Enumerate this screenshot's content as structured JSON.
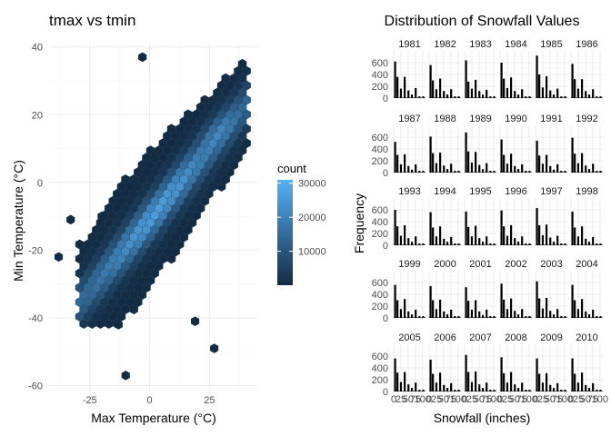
{
  "chart_data": [
    {
      "type": "hexbin",
      "title": "tmax vs tmin",
      "xlabel": "Max Temperature (°C)",
      "ylabel": "Min Temperature (°C)",
      "xlim": [
        -42,
        45
      ],
      "ylim": [
        -62,
        41
      ],
      "xticks": [
        -25,
        0,
        25
      ],
      "yticks": [
        -60,
        -40,
        -20,
        0,
        20,
        40
      ],
      "legend": {
        "title": "count",
        "position": "right",
        "breaks": [
          10000,
          20000,
          30000
        ],
        "labels": [
          "10000",
          "20000",
          "30000"
        ],
        "range": [
          1,
          31000
        ],
        "low_color": "#132B43",
        "high_color": "#56B1F7"
      },
      "trend": {
        "slope": 0.84,
        "intercept": -11,
        "spread": 8,
        "peak": [
          25,
          18
        ],
        "peak_count": 31000
      },
      "outliers": [
        {
          "x": -38,
          "y": -22
        },
        {
          "x": -33,
          "y": -11
        },
        {
          "x": -10,
          "y": -57
        },
        {
          "x": 27,
          "y": -49
        },
        {
          "x": 19,
          "y": -41
        },
        {
          "x": -13,
          "y": -42
        },
        {
          "x": -20,
          "y": -10
        },
        {
          "x": -3,
          "y": 37
        }
      ]
    },
    {
      "type": "bar",
      "title": "Distribution of Snowfall Values",
      "xlabel": "Snowfall (inches)",
      "ylabel": "Frequency",
      "ylim": [
        0,
        800
      ],
      "yticks": [
        0,
        200,
        400,
        600
      ],
      "xticks": [
        0,
        25,
        50,
        75,
        100
      ],
      "xtick_labels": [
        "0",
        "25",
        "50",
        "75",
        "100"
      ],
      "bin_centers": [
        5,
        13,
        25,
        38,
        51,
        63,
        76,
        89,
        102
      ],
      "panels": [
        {
          "year": "1981",
          "values": [
            620,
            360,
            160,
            360,
            130,
            60,
            170,
            30,
            30
          ]
        },
        {
          "year": "1982",
          "values": [
            560,
            300,
            150,
            330,
            120,
            60,
            150,
            30,
            30
          ]
        },
        {
          "year": "1983",
          "values": [
            640,
            280,
            160,
            310,
            120,
            60,
            140,
            30,
            30
          ]
        },
        {
          "year": "1984",
          "values": [
            600,
            330,
            170,
            350,
            120,
            60,
            150,
            30,
            30
          ]
        },
        {
          "year": "1985",
          "values": [
            720,
            400,
            180,
            370,
            130,
            60,
            160,
            30,
            30
          ]
        },
        {
          "year": "1986",
          "values": [
            580,
            320,
            160,
            320,
            120,
            60,
            150,
            30,
            30
          ]
        },
        {
          "year": "1987",
          "values": [
            520,
            300,
            140,
            310,
            110,
            50,
            140,
            30,
            30
          ]
        },
        {
          "year": "1988",
          "values": [
            610,
            330,
            160,
            340,
            120,
            60,
            150,
            30,
            30
          ]
        },
        {
          "year": "1989",
          "values": [
            680,
            360,
            170,
            350,
            130,
            60,
            160,
            30,
            30
          ]
        },
        {
          "year": "1990",
          "values": [
            560,
            300,
            150,
            320,
            110,
            60,
            140,
            30,
            30
          ]
        },
        {
          "year": "1991",
          "values": [
            540,
            290,
            150,
            300,
            110,
            50,
            140,
            30,
            30
          ]
        },
        {
          "year": "1992",
          "values": [
            590,
            320,
            160,
            330,
            120,
            60,
            150,
            30,
            30
          ]
        },
        {
          "year": "1993",
          "values": [
            600,
            320,
            160,
            340,
            120,
            60,
            150,
            30,
            30
          ]
        },
        {
          "year": "1994",
          "values": [
            560,
            300,
            150,
            320,
            110,
            60,
            140,
            30,
            30
          ]
        },
        {
          "year": "1995",
          "values": [
            570,
            310,
            150,
            330,
            120,
            60,
            150,
            30,
            30
          ]
        },
        {
          "year": "1996",
          "values": [
            590,
            320,
            160,
            340,
            120,
            60,
            150,
            30,
            30
          ]
        },
        {
          "year": "1997",
          "values": [
            630,
            340,
            170,
            350,
            130,
            60,
            160,
            30,
            30
          ]
        },
        {
          "year": "1998",
          "values": [
            570,
            300,
            150,
            320,
            110,
            60,
            140,
            30,
            30
          ]
        },
        {
          "year": "1999",
          "values": [
            560,
            300,
            150,
            320,
            110,
            60,
            140,
            30,
            30
          ]
        },
        {
          "year": "2000",
          "values": [
            540,
            300,
            150,
            310,
            110,
            60,
            140,
            30,
            30
          ]
        },
        {
          "year": "2001",
          "values": [
            520,
            290,
            140,
            300,
            110,
            50,
            140,
            30,
            30
          ]
        },
        {
          "year": "2002",
          "values": [
            580,
            310,
            150,
            330,
            120,
            60,
            150,
            30,
            30
          ]
        },
        {
          "year": "2003",
          "values": [
            620,
            330,
            160,
            340,
            120,
            60,
            150,
            30,
            30
          ]
        },
        {
          "year": "2004",
          "values": [
            560,
            300,
            150,
            320,
            110,
            60,
            140,
            30,
            30
          ]
        },
        {
          "year": "2005",
          "values": [
            560,
            320,
            160,
            330,
            120,
            60,
            150,
            30,
            30
          ]
        },
        {
          "year": "2006",
          "values": [
            540,
            300,
            150,
            320,
            110,
            60,
            140,
            30,
            30
          ]
        },
        {
          "year": "2007",
          "values": [
            620,
            330,
            160,
            340,
            120,
            60,
            150,
            30,
            30
          ]
        },
        {
          "year": "2008",
          "values": [
            580,
            310,
            150,
            330,
            120,
            60,
            150,
            30,
            30
          ]
        },
        {
          "year": "2009",
          "values": [
            560,
            300,
            150,
            310,
            110,
            60,
            140,
            30,
            30
          ]
        },
        {
          "year": "2010",
          "values": [
            560,
            300,
            150,
            320,
            110,
            60,
            140,
            30,
            30
          ]
        }
      ]
    }
  ]
}
